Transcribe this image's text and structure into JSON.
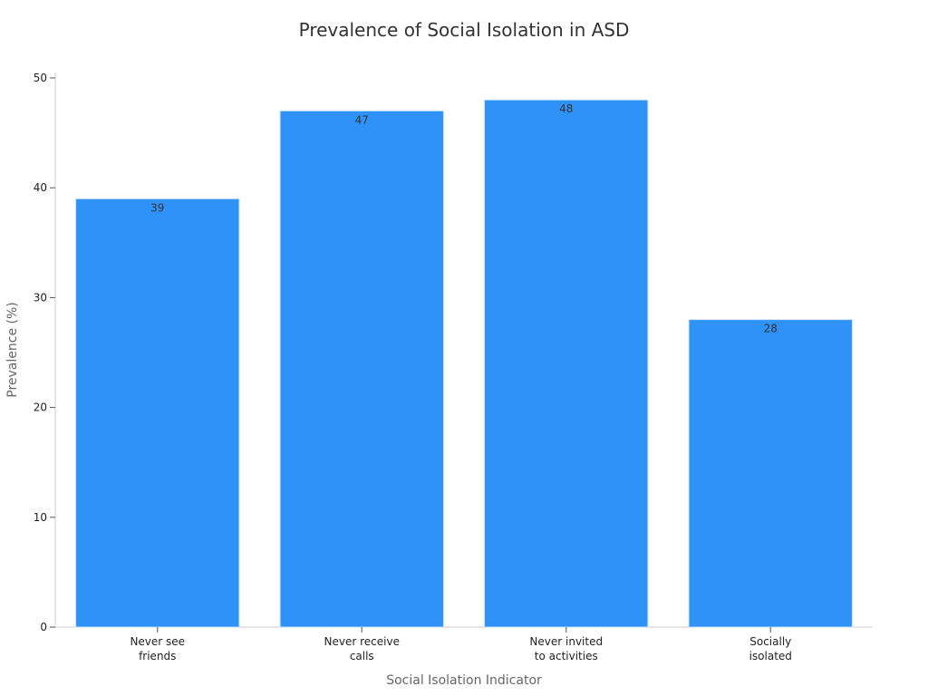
{
  "chart_data": {
    "type": "bar",
    "title": "Prevalence of Social Isolation in ASD",
    "xlabel": "Social Isolation Indicator",
    "ylabel": "Prevalence (%)",
    "categories": [
      [
        "Never see",
        "friends"
      ],
      [
        "Never receive",
        "calls"
      ],
      [
        "Never invited",
        "to activities"
      ],
      [
        "Socially",
        "isolated"
      ]
    ],
    "values": [
      39,
      47,
      48,
      28
    ],
    "ylim": [
      0,
      50
    ],
    "yticks": [
      0,
      10,
      20,
      30,
      40,
      50
    ],
    "grid": false,
    "legend": "none",
    "bar_color": "#2f92f8",
    "bar_edge_color": "#cfe3f9"
  }
}
